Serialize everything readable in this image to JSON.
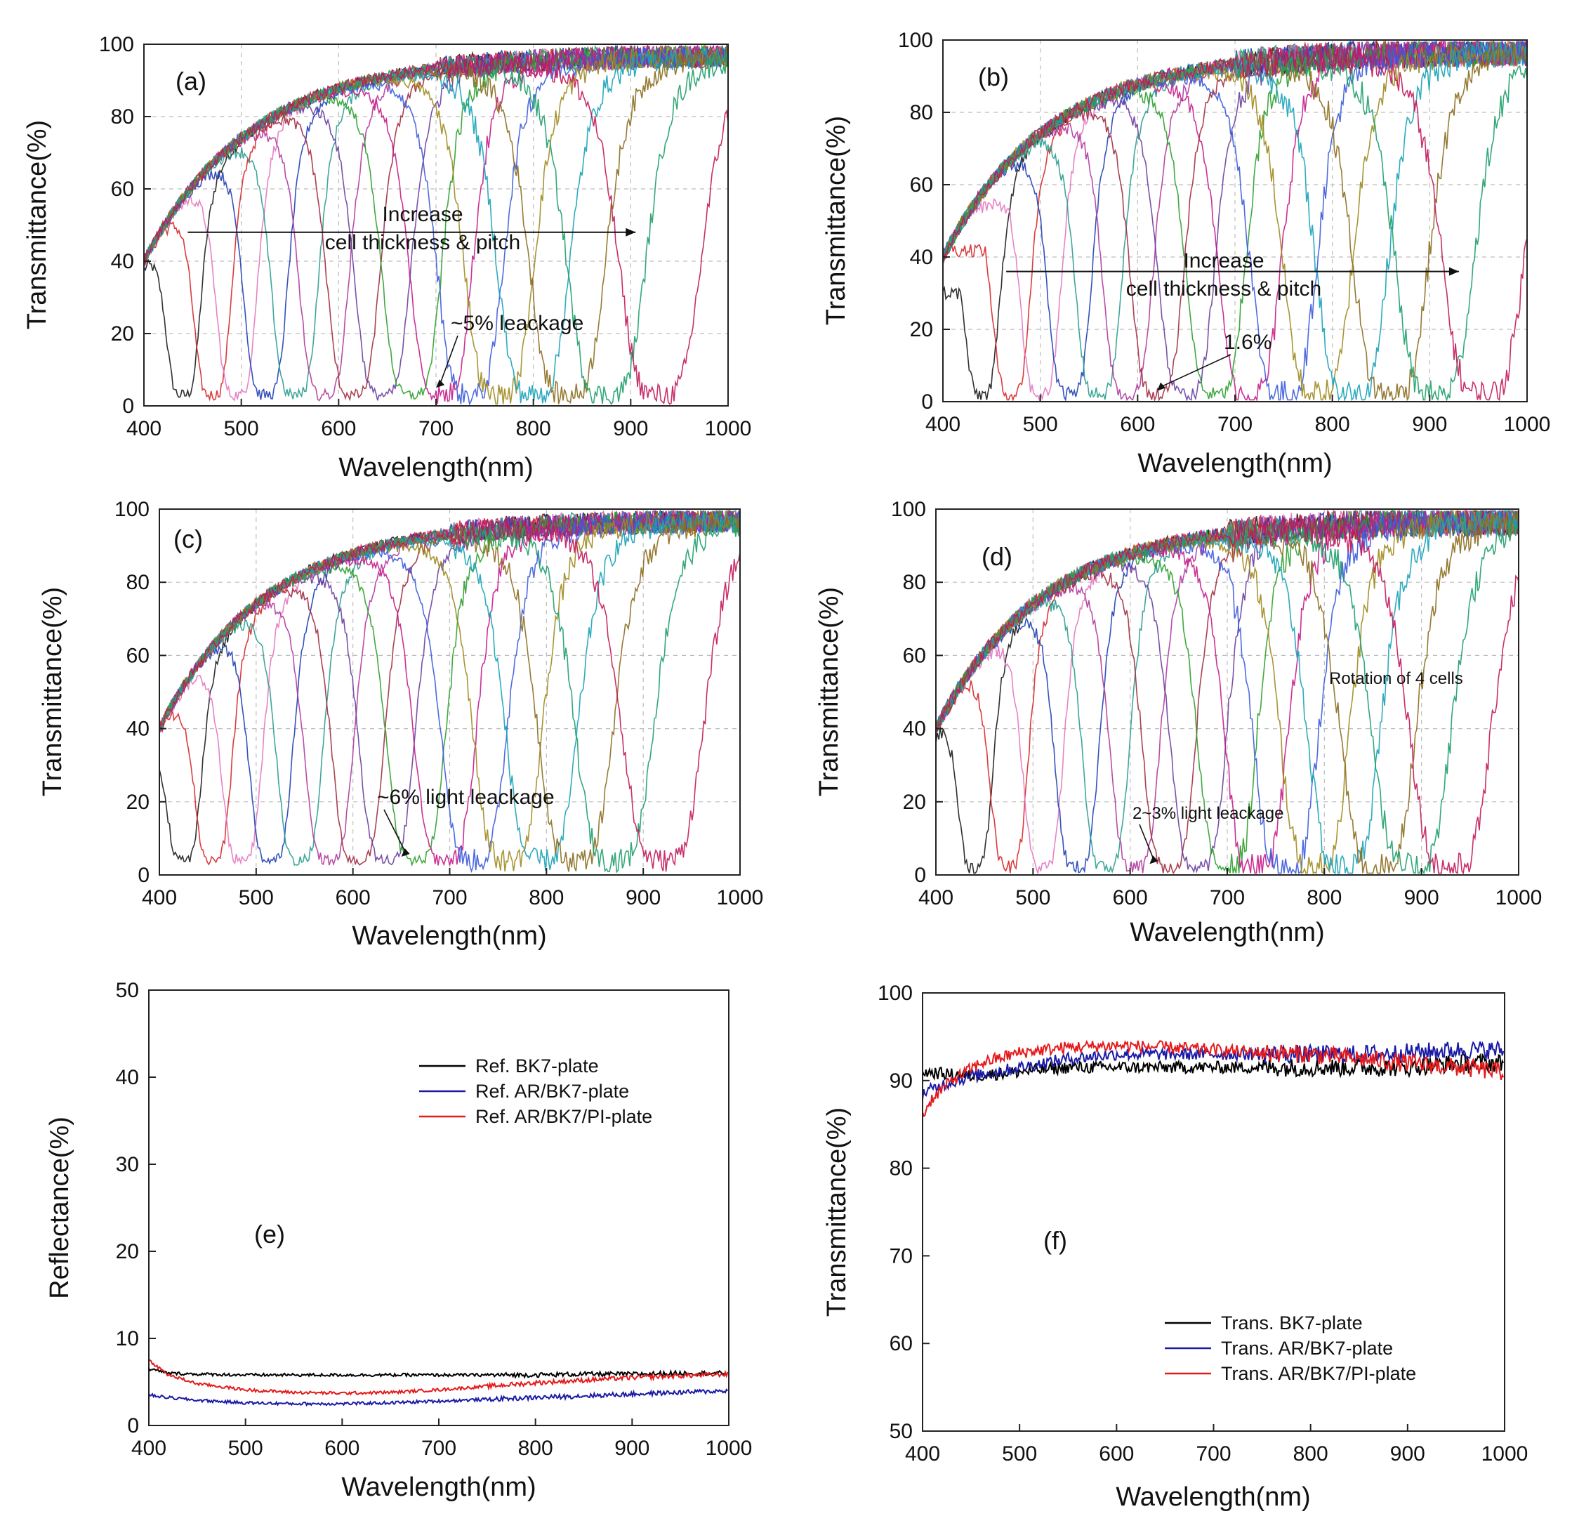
{
  "panels": [
    {
      "id": "a",
      "panel_label": "(a)",
      "chart_data": {
        "type": "line",
        "xlabel": "Wavelength(nm)",
        "ylabel": "Transmittance(%)",
        "xlim": [
          400,
          1000
        ],
        "ylim": [
          0,
          100
        ],
        "xticks": [
          400,
          500,
          600,
          700,
          800,
          900,
          1000
        ],
        "yticks": [
          0,
          20,
          40,
          60,
          80,
          100
        ],
        "grid": true,
        "series_count": 16,
        "band_centers": [
          440,
          470,
          495,
          525,
          555,
          585,
          615,
          645,
          675,
          705,
          735,
          765,
          800,
          835,
          875,
          930
        ],
        "baseline_percent": 3,
        "peak_percent_first": 47,
        "noise_percent": 4,
        "annotations": {
          "arrow_text_line1": "Increase",
          "arrow_text_line2": "cell thickness & pitch",
          "arrow_x_start": 445,
          "arrow_x_end": 905,
          "arrow_y": 48,
          "leakage_text": "~5% leackage",
          "leakage_pointer_x": 700,
          "leakage_pointer_y": 5
        }
      }
    },
    {
      "id": "b",
      "panel_label": "(b)",
      "chart_data": {
        "type": "line",
        "xlabel": "Wavelength(nm)",
        "ylabel": "Transmittance(%)",
        "xlim": [
          400,
          1000
        ],
        "ylim": [
          0,
          100
        ],
        "xticks": [
          400,
          500,
          600,
          700,
          800,
          900,
          1000
        ],
        "yticks": [
          0,
          20,
          40,
          60,
          80,
          100
        ],
        "grid": true,
        "series_count": 16,
        "band_centers": [
          440,
          470,
          500,
          530,
          560,
          590,
          620,
          650,
          680,
          715,
          750,
          785,
          820,
          860,
          905,
          955
        ],
        "baseline_percent": 2,
        "peak_percent_first": 30,
        "noise_percent": 5,
        "annotations": {
          "arrow_text_line1": "Increase",
          "arrow_text_line2": "cell thickness & pitch",
          "arrow_x_start": 465,
          "arrow_x_end": 930,
          "arrow_y": 36,
          "leakage_text": "1.6%",
          "leakage_pointer_x": 620,
          "leakage_pointer_y": 3
        }
      }
    },
    {
      "id": "c",
      "panel_label": "(c)",
      "chart_data": {
        "type": "line",
        "xlabel": "Wavelength(nm)",
        "ylabel": "Transmittance(%)",
        "xlim": [
          400,
          1000
        ],
        "ylim": [
          0,
          100
        ],
        "xticks": [
          400,
          500,
          600,
          700,
          800,
          900,
          1000
        ],
        "yticks": [
          0,
          20,
          40,
          60,
          80,
          100
        ],
        "grid": true,
        "series_count": 16,
        "band_centers": [
          425,
          455,
          485,
          515,
          545,
          575,
          605,
          635,
          665,
          695,
          725,
          760,
          795,
          830,
          870,
          920
        ],
        "baseline_percent": 4,
        "peak_percent_first": 47,
        "noise_percent": 4,
        "annotations": {
          "leakage_text": "~6% light leackage",
          "leakage_pointer_x": 650,
          "leakage_pointer_y": 5
        }
      }
    },
    {
      "id": "d",
      "panel_label": "(d)",
      "chart_data": {
        "type": "line",
        "xlabel": "Wavelength(nm)",
        "ylabel": "Transmittance(%)",
        "xlim": [
          400,
          1000
        ],
        "ylim": [
          0,
          100
        ],
        "xticks": [
          400,
          500,
          600,
          700,
          800,
          900,
          1000
        ],
        "yticks": [
          0,
          20,
          40,
          60,
          80,
          100
        ],
        "grid": true,
        "series_count": 16,
        "band_centers": [
          440,
          475,
          510,
          545,
          575,
          605,
          640,
          670,
          700,
          730,
          760,
          790,
          820,
          855,
          890,
          930
        ],
        "baseline_percent": 2,
        "peak_percent_first": 40,
        "noise_percent": 5,
        "annotations": {
          "rotation_text": "Rotation of 4 cells",
          "leakage_text": "2~3% light leackage",
          "leakage_pointer_x": 620,
          "leakage_pointer_y": 3
        }
      }
    },
    {
      "id": "e",
      "panel_label": "(e)",
      "chart_data": {
        "type": "line",
        "xlabel": "Wavelength(nm)",
        "ylabel": "Reflectance(%)",
        "xlim": [
          400,
          1000
        ],
        "ylim": [
          0,
          50
        ],
        "xticks": [
          400,
          500,
          600,
          700,
          800,
          900,
          1000
        ],
        "yticks": [
          0,
          10,
          20,
          30,
          40,
          50
        ],
        "grid": false,
        "legend": {
          "position": "top-right",
          "entries": [
            {
              "label": "Ref. BK7-plate",
              "color": "#000000"
            },
            {
              "label": "Ref. AR/BK7-plate",
              "color": "#1a1aa6"
            },
            {
              "label": "Ref. AR/BK7/PI-plate",
              "color": "#e41a1c"
            }
          ]
        },
        "series": [
          {
            "color": "#000000",
            "x": [
              400,
              420,
              450,
              500,
              550,
              600,
              650,
              700,
              750,
              800,
              850,
              900,
              950,
              1000
            ],
            "y": [
              6.5,
              6.0,
              5.9,
              5.8,
              5.8,
              5.8,
              5.8,
              5.8,
              5.8,
              5.8,
              5.9,
              5.9,
              6.0,
              6.0
            ]
          },
          {
            "color": "#1a1aa6",
            "x": [
              400,
              420,
              450,
              500,
              550,
              600,
              650,
              700,
              750,
              800,
              850,
              900,
              950,
              1000
            ],
            "y": [
              3.5,
              3.2,
              2.9,
              2.6,
              2.5,
              2.5,
              2.6,
              2.8,
              3.0,
              3.2,
              3.4,
              3.6,
              3.8,
              4.0
            ]
          },
          {
            "color": "#e41a1c",
            "x": [
              400,
              420,
              450,
              500,
              550,
              600,
              650,
              700,
              750,
              800,
              850,
              900,
              950,
              1000
            ],
            "y": [
              7.5,
              5.8,
              4.8,
              4.1,
              3.8,
              3.7,
              3.8,
              4.1,
              4.5,
              4.9,
              5.2,
              5.5,
              5.7,
              5.9
            ]
          }
        ]
      }
    },
    {
      "id": "f",
      "panel_label": "(f)",
      "chart_data": {
        "type": "line",
        "xlabel": "Wavelength(nm)",
        "ylabel": "Transmittance(%)",
        "xlim": [
          400,
          1000
        ],
        "ylim": [
          50,
          100
        ],
        "xticks": [
          400,
          500,
          600,
          700,
          800,
          900,
          1000
        ],
        "yticks": [
          50,
          60,
          70,
          80,
          90,
          100
        ],
        "grid": false,
        "legend": {
          "position": "bottom-right",
          "entries": [
            {
              "label": "Trans. BK7-plate",
              "color": "#000000"
            },
            {
              "label": "Trans. AR/BK7-plate",
              "color": "#1a1aa6"
            },
            {
              "label": "Trans. AR/BK7/PI-plate",
              "color": "#e41a1c"
            }
          ]
        },
        "series": [
          {
            "color": "#000000",
            "x": [
              400,
              450,
              500,
              550,
              600,
              650,
              700,
              750,
              800,
              850,
              900,
              950,
              1000
            ],
            "y": [
              91,
              90.5,
              91,
              91.5,
              91.5,
              91.5,
              91.5,
              91.5,
              91.5,
              91.5,
              91.5,
              92,
              92
            ]
          },
          {
            "color": "#1a1aa6",
            "x": [
              400,
              420,
              450,
              500,
              550,
              600,
              650,
              700,
              750,
              800,
              850,
              900,
              950,
              1000
            ],
            "y": [
              88.5,
              89.5,
              90.5,
              91.5,
              92.5,
              93,
              93,
              93,
              93,
              93,
              93,
              93.2,
              93.5,
              93.5
            ]
          },
          {
            "color": "#e41a1c",
            "x": [
              400,
              410,
              430,
              460,
              500,
              550,
              600,
              650,
              700,
              750,
              800,
              850,
              900,
              950,
              1000
            ],
            "y": [
              86,
              88,
              90,
              92,
              93.2,
              93.8,
              94,
              93.8,
              93.5,
              93.2,
              93,
              92.5,
              92,
              91.5,
              91
            ]
          }
        ]
      }
    }
  ],
  "colors": {
    "palette": [
      "#1b1b1b",
      "#d62728",
      "#e377c2",
      "#1f3fb4",
      "#2a9d8f",
      "#b03a9e",
      "#a02c40",
      "#6a3fa0",
      "#2ca02c",
      "#c51b8a",
      "#3b5bdb",
      "#9e8a1f",
      "#17a2b8",
      "#8b6d1f",
      "#1e9e6a",
      "#c2185b"
    ]
  }
}
